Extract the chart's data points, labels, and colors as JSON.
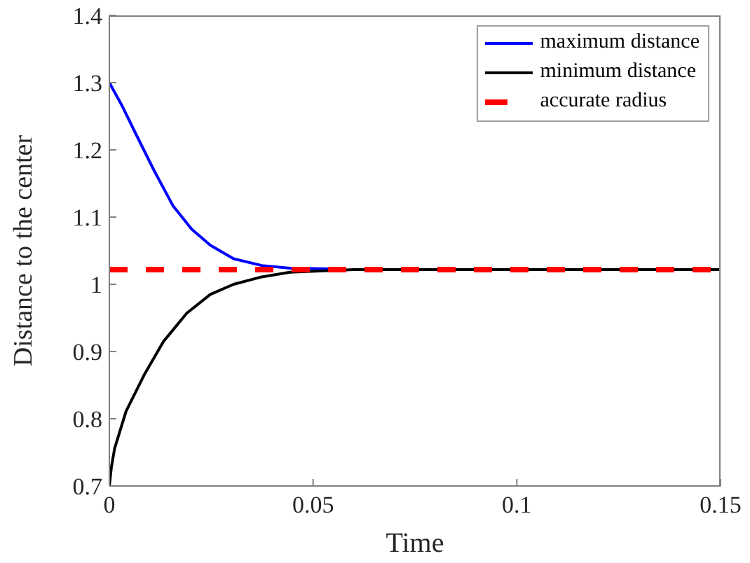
{
  "chart_data": {
    "type": "line",
    "xlabel": "Time",
    "ylabel": "Distance to the center",
    "xlim": [
      0,
      0.15
    ],
    "xticks": [
      0,
      0.05,
      0.1,
      0.15
    ],
    "ylim": [
      0.7,
      1.4
    ],
    "yticks": [
      0.7,
      0.8,
      0.9,
      1,
      1.1,
      1.2,
      1.3,
      1.4
    ],
    "legend": "top right",
    "marker": "none",
    "series": [
      {
        "name": "maximum distance",
        "color": "#0000ff",
        "line_style": "solid",
        "x": [
          0,
          0.003,
          0.0064,
          0.011,
          0.0156,
          0.0202,
          0.0248,
          0.0305,
          0.0374,
          0.0443,
          0.055
        ],
        "values": [
          1.3,
          1.267,
          1.225,
          1.169,
          1.117,
          1.082,
          1.058,
          1.038,
          1.028,
          1.024,
          1.023
        ]
      },
      {
        "name": "minimum distance",
        "color": "#000000",
        "line_style": "solid",
        "x": [
          0,
          0.0005,
          0.0013,
          0.0041,
          0.0087,
          0.0133,
          0.019,
          0.0248,
          0.0305,
          0.0374,
          0.0443,
          0.06,
          0.15
        ],
        "values": [
          0.7,
          0.728,
          0.756,
          0.811,
          0.867,
          0.915,
          0.957,
          0.985,
          1.0,
          1.011,
          1.018,
          1.022,
          1.022
        ]
      },
      {
        "name": "accurate radius",
        "color": "#ff0000",
        "line_style": "dashed",
        "x": [
          0,
          0.15
        ],
        "values": [
          1.022,
          1.022
        ]
      }
    ]
  }
}
